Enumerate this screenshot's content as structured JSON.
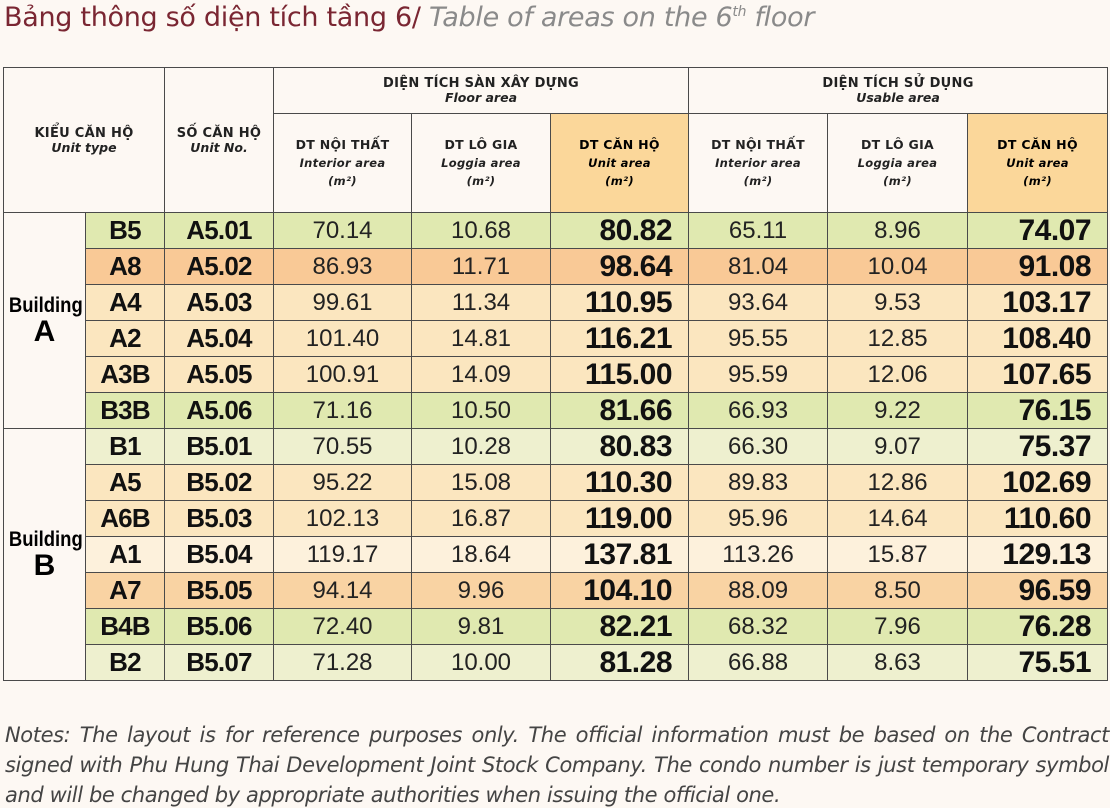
{
  "title": {
    "vi": "Bảng thông số diện tích tầng 6/",
    "en_prefix": "Table of areas on the 6",
    "en_sup": "th",
    "en_suffix": " floor"
  },
  "headers": {
    "unit_type": {
      "vi": "KIỂU CĂN HỘ",
      "en": "Unit type"
    },
    "unit_no": {
      "vi": "SỐ CĂN HỘ",
      "en": "Unit No."
    },
    "floor_area": {
      "vi": "DIỆN TÍCH SÀN XÂY DỰNG",
      "en": "Floor area"
    },
    "usable_area": {
      "vi": "DIỆN TÍCH SỬ DỤNG",
      "en": "Usable area"
    },
    "interior": {
      "vi": "DT NỘI THẤT",
      "en": "Interior area",
      "unit": "(m²)"
    },
    "loggia": {
      "vi": "DT LÔ GIA",
      "en": "Loggia area",
      "unit": "(m²)"
    },
    "unit_area": {
      "vi": "DT CĂN HỘ",
      "en": "Unit area",
      "unit": "(m²)"
    }
  },
  "buildings": [
    {
      "word": "Building",
      "letter": "A",
      "rows": [
        {
          "type": "B5",
          "unit": "A5.01",
          "f_int": "70.14",
          "f_log": "10.68",
          "f_tot": "80.82",
          "u_int": "65.11",
          "u_log": "8.96",
          "u_tot": "74.07",
          "color": "#e0e9b0"
        },
        {
          "type": "A8",
          "unit": "A5.02",
          "f_int": "86.93",
          "f_log": "11.71",
          "f_tot": "98.64",
          "u_int": "81.04",
          "u_log": "10.04",
          "u_tot": "91.08",
          "color": "#f9c996"
        },
        {
          "type": "A4",
          "unit": "A5.03",
          "f_int": "99.61",
          "f_log": "11.34",
          "f_tot": "110.95",
          "u_int": "93.64",
          "u_log": "9.53",
          "u_tot": "103.17",
          "color": "#fbe6bf"
        },
        {
          "type": "A2",
          "unit": "A5.04",
          "f_int": "101.40",
          "f_log": "14.81",
          "f_tot": "116.21",
          "u_int": "95.55",
          "u_log": "12.85",
          "u_tot": "108.40",
          "color": "#fbe6bf"
        },
        {
          "type": "A3B",
          "unit": "A5.05",
          "f_int": "100.91",
          "f_log": "14.09",
          "f_tot": "115.00",
          "u_int": "95.59",
          "u_log": "12.06",
          "u_tot": "107.65",
          "color": "#fbe6bf"
        },
        {
          "type": "B3B",
          "unit": "A5.06",
          "f_int": "71.16",
          "f_log": "10.50",
          "f_tot": "81.66",
          "u_int": "66.93",
          "u_log": "9.22",
          "u_tot": "76.15",
          "color": "#e0e9b0"
        }
      ]
    },
    {
      "word": "Building",
      "letter": "B",
      "rows": [
        {
          "type": "B1",
          "unit": "B5.01",
          "f_int": "70.55",
          "f_log": "10.28",
          "f_tot": "80.83",
          "u_int": "66.30",
          "u_log": "9.07",
          "u_tot": "75.37",
          "color": "#eef0cf"
        },
        {
          "type": "A5",
          "unit": "B5.02",
          "f_int": "95.22",
          "f_log": "15.08",
          "f_tot": "110.30",
          "u_int": "89.83",
          "u_log": "12.86",
          "u_tot": "102.69",
          "color": "#fbe6bf"
        },
        {
          "type": "A6B",
          "unit": "B5.03",
          "f_int": "102.13",
          "f_log": "16.87",
          "f_tot": "119.00",
          "u_int": "95.96",
          "u_log": "14.64",
          "u_tot": "110.60",
          "color": "#fbe6bf"
        },
        {
          "type": "A1",
          "unit": "B5.04",
          "f_int": "119.17",
          "f_log": "18.64",
          "f_tot": "137.81",
          "u_int": "113.26",
          "u_log": "15.87",
          "u_tot": "129.13",
          "color": "#fdf1dc"
        },
        {
          "type": "A7",
          "unit": "B5.05",
          "f_int": "94.14",
          "f_log": "9.96",
          "f_tot": "104.10",
          "u_int": "88.09",
          "u_log": "8.50",
          "u_tot": "96.59",
          "color": "#f9d3a3"
        },
        {
          "type": "B4B",
          "unit": "B5.06",
          "f_int": "72.40",
          "f_log": "9.81",
          "f_tot": "82.21",
          "u_int": "68.32",
          "u_log": "7.96",
          "u_tot": "76.28",
          "color": "#e0e9b0"
        },
        {
          "type": "B2",
          "unit": "B5.07",
          "f_int": "71.28",
          "f_log": "10.00",
          "f_tot": "81.28",
          "u_int": "66.88",
          "u_log": "8.63",
          "u_tot": "75.51",
          "color": "#eef0cf"
        }
      ]
    }
  ],
  "notes": "Notes: The layout is for reference purposes only. The official information must be based on the Contract signed with Phu Hung Thai Development Joint Stock Company. The condo number is just temporary symbol and will be changed by appropriate authorities when issuing the official one."
}
